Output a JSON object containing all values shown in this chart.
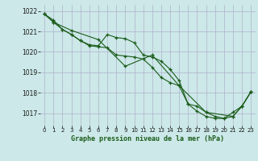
{
  "title": "Graphe pression niveau de la mer (hPa)",
  "bg_color": "#cce8e8",
  "grid_color": "#b0b0cc",
  "line_color": "#1a5c1a",
  "xlim": [
    -0.5,
    23.5
  ],
  "ylim": [
    1016.4,
    1022.3
  ],
  "yticks": [
    1017,
    1018,
    1019,
    1020,
    1021,
    1022
  ],
  "xticks": [
    0,
    1,
    2,
    3,
    4,
    5,
    6,
    7,
    8,
    9,
    10,
    11,
    12,
    13,
    14,
    15,
    16,
    17,
    18,
    19,
    20,
    21,
    22,
    23
  ],
  "series1_x": [
    0,
    1,
    2,
    3,
    4,
    5,
    6,
    7,
    8,
    9,
    10,
    11,
    12,
    13,
    14,
    15,
    16,
    17,
    18,
    19,
    20,
    21,
    22,
    23
  ],
  "series1_y": [
    1021.85,
    1021.55,
    1021.1,
    1020.85,
    1020.55,
    1020.35,
    1020.3,
    1020.85,
    1020.7,
    1020.65,
    1020.45,
    1019.85,
    1019.75,
    1019.55,
    1019.15,
    1018.6,
    1017.45,
    1017.35,
    1017.05,
    1016.85,
    1016.75,
    1017.05,
    1017.35,
    1018.05
  ],
  "series2_x": [
    0,
    1,
    2,
    3,
    4,
    5,
    6,
    7,
    8,
    9,
    10,
    11,
    12,
    13,
    14,
    15,
    16,
    17,
    18,
    19,
    20,
    21,
    22,
    23
  ],
  "series2_y": [
    1021.85,
    1021.45,
    1021.1,
    1020.85,
    1020.55,
    1020.3,
    1020.25,
    1020.2,
    1019.85,
    1019.8,
    1019.75,
    1019.65,
    1019.25,
    1018.75,
    1018.5,
    1018.35,
    1017.45,
    1017.1,
    1016.85,
    1016.75,
    1016.75,
    1016.85,
    1017.35,
    1018.05
  ],
  "series3_x": [
    0,
    1,
    3,
    6,
    9,
    12,
    15,
    18,
    21,
    22,
    23
  ],
  "series3_y": [
    1021.85,
    1021.45,
    1021.05,
    1020.6,
    1019.3,
    1019.85,
    1018.35,
    1017.05,
    1016.85,
    1017.35,
    1018.05
  ]
}
